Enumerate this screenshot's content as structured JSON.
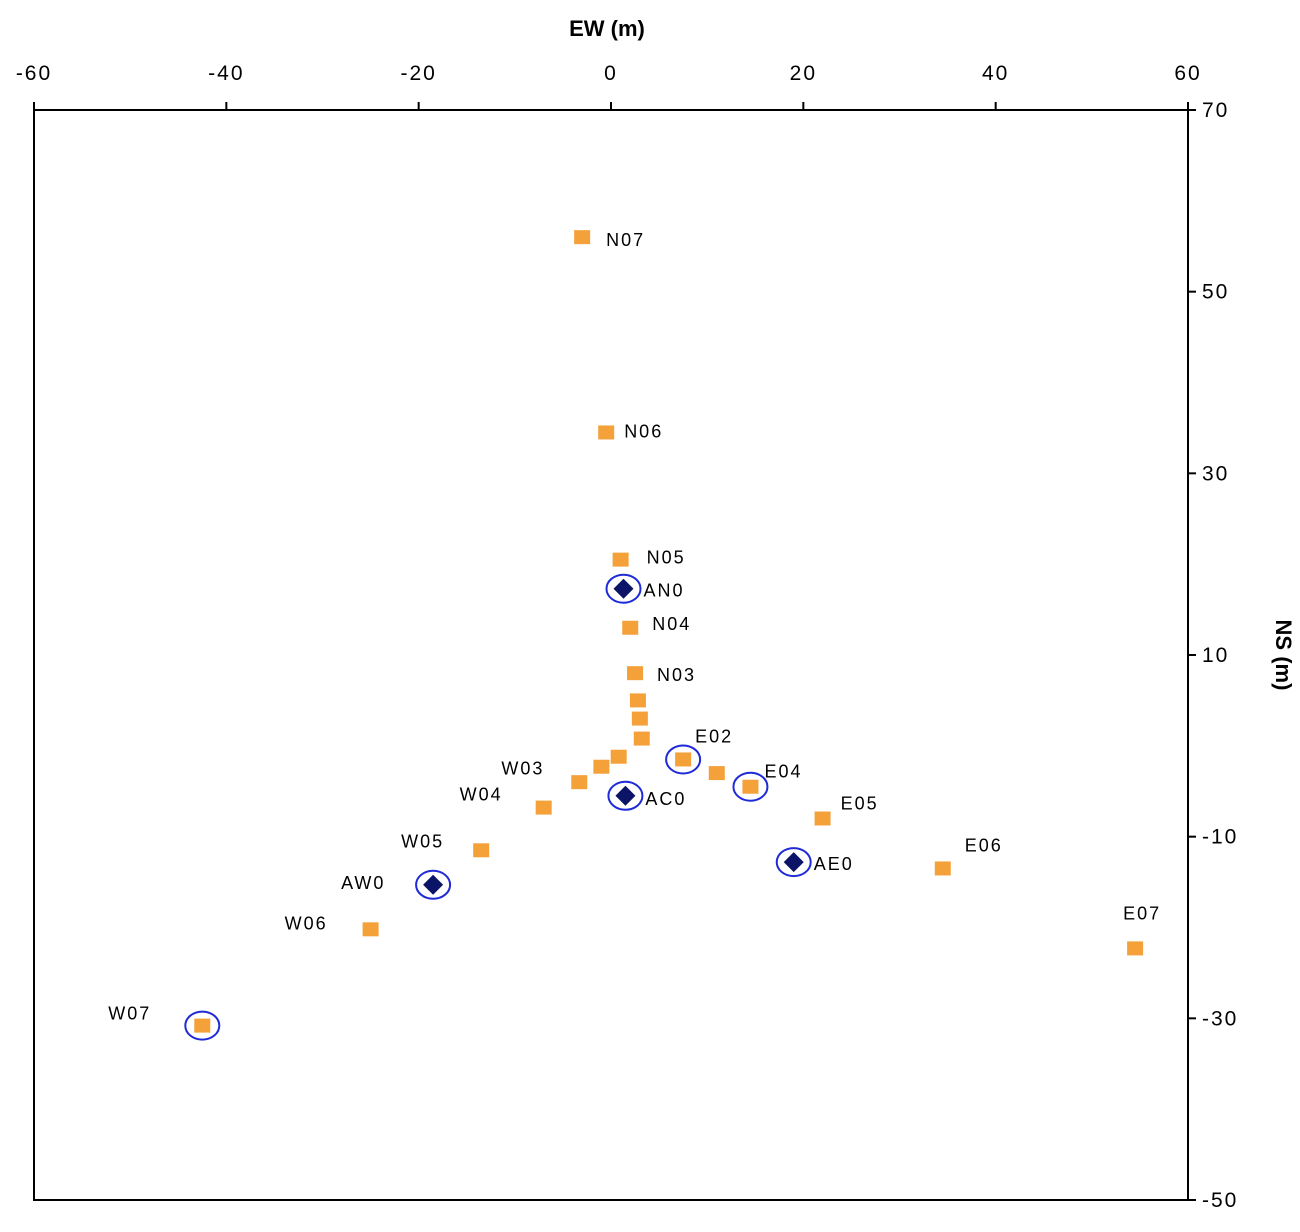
{
  "chart_data": {
    "type": "scatter",
    "xlabel": "EW (m)",
    "ylabel": "NS (m)",
    "xlim": [
      -60,
      60
    ],
    "ylim": [
      -50,
      70
    ],
    "xticks": [
      -60,
      -40,
      -20,
      0,
      20,
      40,
      60
    ],
    "yticks": [
      70,
      50,
      30,
      10,
      -10,
      -30,
      -50
    ],
    "x_axis_position": "top",
    "y_axis_position": "right",
    "grid": false,
    "series": [
      {
        "marker": "square",
        "color": "#f4a13a",
        "points": [
          {
            "label": "N07",
            "x": -3,
            "y": 56
          },
          {
            "label": "N06",
            "x": -0.5,
            "y": 34.5
          },
          {
            "label": "N05",
            "x": 1,
            "y": 20.5
          },
          {
            "label": "N04",
            "x": 2,
            "y": 13
          },
          {
            "label": "N03",
            "x": 2.5,
            "y": 8
          },
          {
            "label": "",
            "x": 2.8,
            "y": 5
          },
          {
            "label": "",
            "x": 3,
            "y": 3
          },
          {
            "label": "",
            "x": 3.2,
            "y": 0.8
          },
          {
            "label": "",
            "x": 0.8,
            "y": -1.2
          },
          {
            "label": "W03",
            "x": -1,
            "y": -2.3
          },
          {
            "label": "",
            "x": -3.3,
            "y": -4
          },
          {
            "label": "W04",
            "x": -7,
            "y": -6.8
          },
          {
            "label": "W05",
            "x": -13.5,
            "y": -11.5
          },
          {
            "label": "W06",
            "x": -25,
            "y": -20.2
          },
          {
            "label": "W07",
            "x": -42.5,
            "y": -30.8
          },
          {
            "label": "E02",
            "x": 7.5,
            "y": -1.5
          },
          {
            "label": "",
            "x": 11,
            "y": -3
          },
          {
            "label": "E04",
            "x": 14.5,
            "y": -4.5
          },
          {
            "label": "E05",
            "x": 22,
            "y": -8
          },
          {
            "label": "E06",
            "x": 34.5,
            "y": -13.5
          },
          {
            "label": "E07",
            "x": 54.5,
            "y": -22.3
          }
        ]
      },
      {
        "marker": "diamond",
        "color": "#0b1466",
        "points": [
          {
            "label": "AN0",
            "x": 1.3,
            "y": 17.3
          },
          {
            "label": "AC0",
            "x": 1.5,
            "y": -5.5
          },
          {
            "label": "AE0",
            "x": 19,
            "y": -12.8
          },
          {
            "label": "AW0",
            "x": -18.5,
            "y": -15.3
          }
        ]
      }
    ],
    "circled_points": [
      {
        "x": 1.3,
        "y": 17.3
      },
      {
        "x": 1.5,
        "y": -5.5
      },
      {
        "x": 19,
        "y": -12.8
      },
      {
        "x": -18.5,
        "y": -15.3
      },
      {
        "x": 7.5,
        "y": -1.5
      },
      {
        "x": 14.5,
        "y": -4.5
      },
      {
        "x": -42.5,
        "y": -30.8
      }
    ],
    "circle_color": "#1f2bd6"
  }
}
